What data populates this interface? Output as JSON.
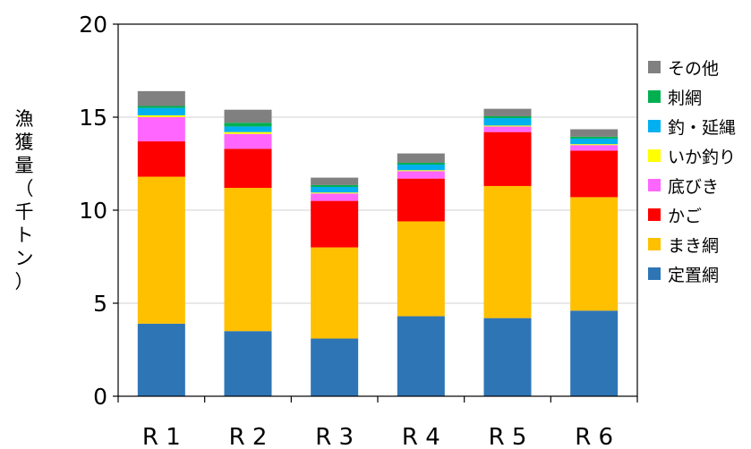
{
  "chart_data": {
    "type": "bar",
    "stacked": true,
    "categories": [
      "R 1",
      "R 2",
      "R 3",
      "R 4",
      "R 5",
      "R 6"
    ],
    "ylabel": "漁獲量（千トン）",
    "ylim": [
      0,
      20
    ],
    "yticks": [
      0,
      5,
      10,
      15,
      20
    ],
    "grid": true,
    "legend_position": "right",
    "series": [
      {
        "name": "定置網",
        "color": "#2E75B6",
        "values": [
          3.9,
          3.5,
          3.1,
          4.3,
          4.2,
          4.6
        ]
      },
      {
        "name": "まき網",
        "color": "#FFC000",
        "values": [
          7.9,
          7.7,
          4.9,
          5.1,
          7.1,
          6.1
        ]
      },
      {
        "name": "かご",
        "color": "#FF0000",
        "values": [
          1.9,
          2.1,
          2.5,
          2.3,
          2.9,
          2.5
        ]
      },
      {
        "name": "底びき",
        "color": "#FF66FF",
        "values": [
          1.3,
          0.8,
          0.4,
          0.4,
          0.3,
          0.3
        ]
      },
      {
        "name": "いか釣り",
        "color": "#FFFF00",
        "values": [
          0.1,
          0.1,
          0.05,
          0.05,
          0.05,
          0.05
        ]
      },
      {
        "name": "釣・延縄",
        "color": "#00B0F0",
        "values": [
          0.4,
          0.3,
          0.3,
          0.3,
          0.4,
          0.3
        ]
      },
      {
        "name": "刺網",
        "color": "#00B050",
        "values": [
          0.1,
          0.2,
          0.1,
          0.1,
          0.1,
          0.1
        ]
      },
      {
        "name": "その他",
        "color": "#808080",
        "values": [
          0.8,
          0.7,
          0.4,
          0.5,
          0.4,
          0.4
        ]
      }
    ]
  }
}
